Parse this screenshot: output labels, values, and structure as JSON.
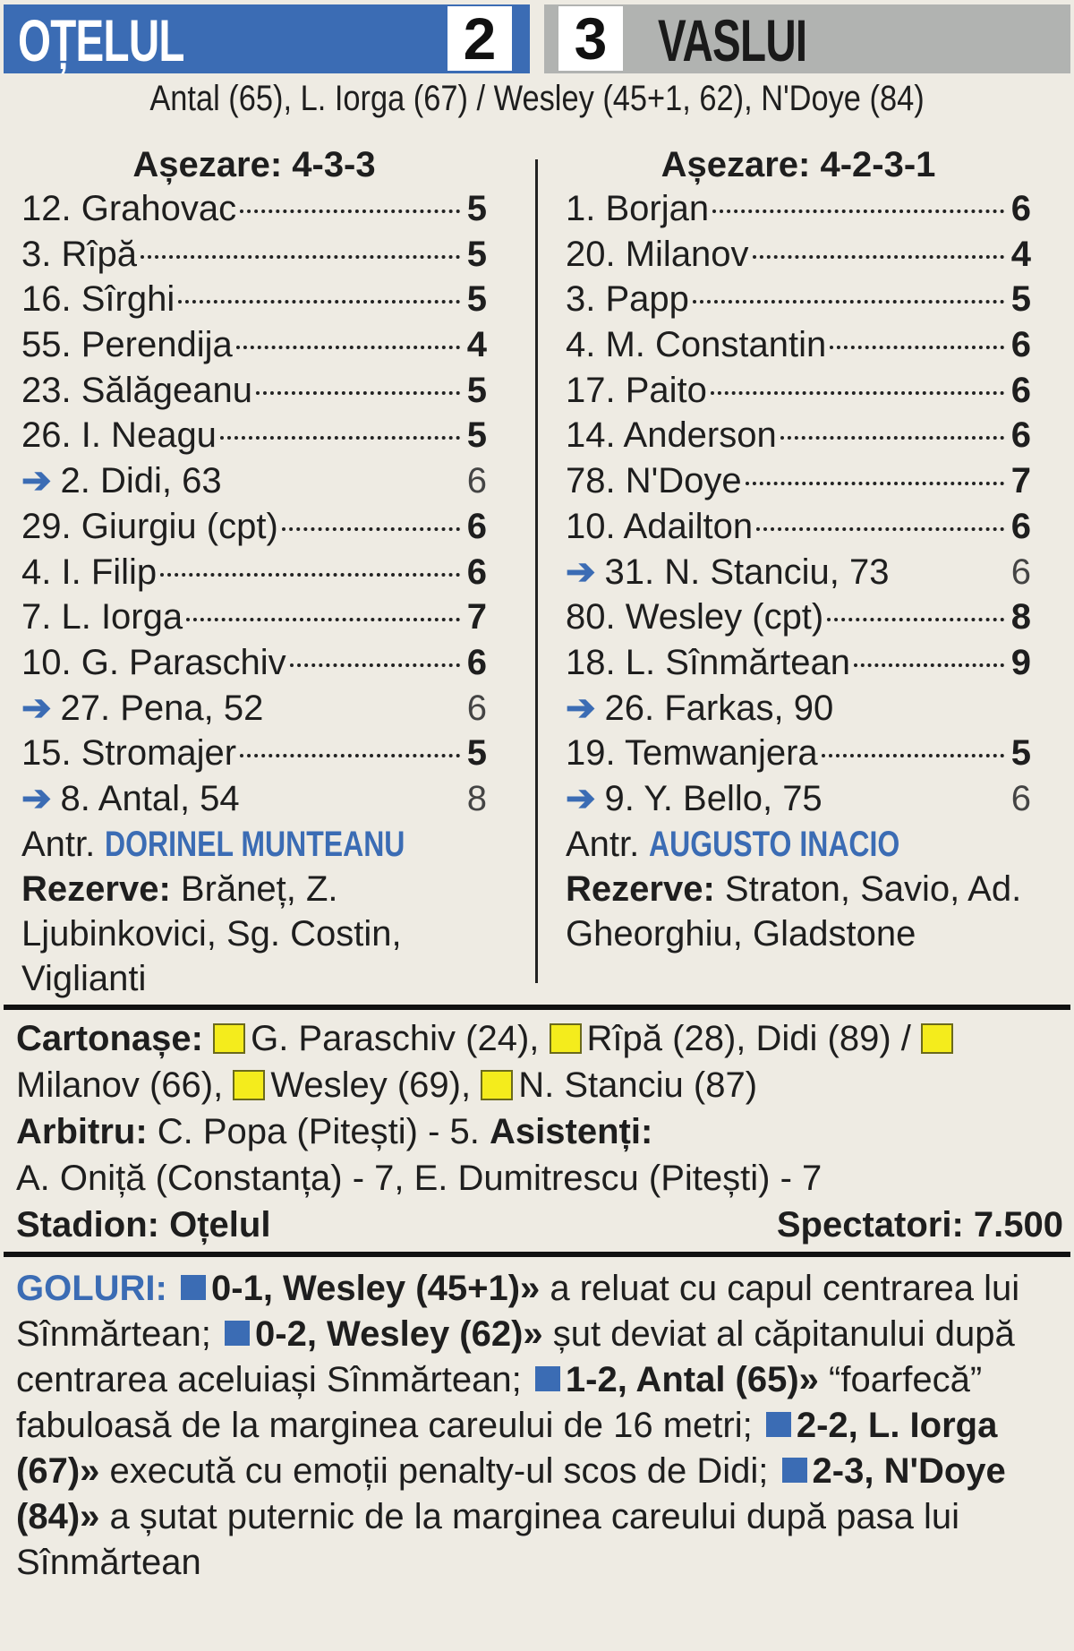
{
  "header": {
    "home": "OȚELUL",
    "away": "VASLUI",
    "home_score": "2",
    "away_score": "3",
    "scorers": "Antal (65), L. Iorga (67) / Wesley (45+1, 62), N'Doye (84)"
  },
  "colors": {
    "home": "#3b6cb4",
    "away": "#b1b3b1",
    "card": "#f4ec1c"
  },
  "home": {
    "formation": "Așezare: 4-3-3",
    "players": [
      {
        "name": "12. Grahovac",
        "rating": "5"
      },
      {
        "name": "3. Rîpă",
        "rating": "5"
      },
      {
        "name": "16. Sîrghi",
        "rating": "5"
      },
      {
        "name": "55. Perendija",
        "rating": "4"
      },
      {
        "name": "23. Sălăgeanu",
        "rating": "5"
      },
      {
        "name": "26. I. Neagu",
        "rating": "5"
      },
      {
        "name": "2. Didi, 63",
        "rating": "6",
        "sub": true
      },
      {
        "name": "29. Giurgiu (cpt)",
        "rating": "6"
      },
      {
        "name": "4. I. Filip",
        "rating": "6"
      },
      {
        "name": "7. L. Iorga",
        "rating": "7"
      },
      {
        "name": "10. G. Paraschiv",
        "rating": "6"
      },
      {
        "name": "27. Pena, 52",
        "rating": "6",
        "sub": true
      },
      {
        "name": "15. Stromajer",
        "rating": "5"
      },
      {
        "name": "8. Antal, 54",
        "rating": "8",
        "sub": true
      }
    ],
    "coach_label": "Antr.",
    "coach": "DORINEL MUNTEANU",
    "reserves_label": "Rezerve:",
    "reserves": "Brăneț, Z. Ljubinkovici, Sg. Costin, Viglianti"
  },
  "away": {
    "formation": "Așezare: 4-2-3-1",
    "players": [
      {
        "name": "1. Borjan",
        "rating": "6"
      },
      {
        "name": "20. Milanov",
        "rating": "4"
      },
      {
        "name": "3. Papp",
        "rating": "5"
      },
      {
        "name": "4. M. Constantin",
        "rating": "6"
      },
      {
        "name": "17. Paito",
        "rating": "6"
      },
      {
        "name": "14. Anderson",
        "rating": "6"
      },
      {
        "name": "78. N'Doye",
        "rating": "7"
      },
      {
        "name": "10. Adailton",
        "rating": "6"
      },
      {
        "name": "31. N. Stanciu, 73",
        "rating": "6",
        "sub": true
      },
      {
        "name": "80. Wesley (cpt)",
        "rating": "8"
      },
      {
        "name": "18. L. Sînmărtean",
        "rating": "9"
      },
      {
        "name": "26. Farkas, 90",
        "rating": "",
        "sub": true
      },
      {
        "name": "19. Temwanjera",
        "rating": "5"
      },
      {
        "name": "9. Y. Bello, 75",
        "rating": "6",
        "sub": true
      }
    ],
    "coach_label": "Antr.",
    "coach": "AUGUSTO INACIO",
    "reserves_label": "Rezerve:",
    "reserves": "Straton, Savio, Ad. Gheorghiu, Gladstone"
  },
  "info": {
    "cards_label": "Cartonașe:",
    "cards": [
      "G. Paraschiv (24),",
      "Rîpă (28), Didi (89) /",
      "Milanov (66),",
      "Wesley (69),",
      "N. Stanciu (87)"
    ],
    "referee_label": "Arbitru:",
    "referee": "C. Popa (Pitești) - 5.",
    "assistants_label": "Asistenți:",
    "assistants": "A. Oniță (Constanța) - 7, E. Dumitrescu (Pitești) - 7",
    "stadium": "Stadion: Oțelul",
    "spectators": "Spectatori: 7.500"
  },
  "goals": {
    "label": "GOLURI:",
    "items": [
      {
        "head": "0-1, Wesley (45+1)»",
        "text": " a reluat cu capul centrarea lui Sînmărtean;"
      },
      {
        "head": "0-2, Wesley (62)»",
        "text": " șut deviat al căpitanului după centrarea aceluiași Sînmărtean;"
      },
      {
        "head": "1-2, Antal (65)»",
        "text": " “foarfecă” fabuloasă de la marginea careului de 16 metri;"
      },
      {
        "head": "2-2, L. Iorga (67)»",
        "text": " execută cu emoții penalty-ul scos de Didi;"
      },
      {
        "head": "2-3, N'Doye (84)»",
        "text": " a șutat puternic de la marginea careului după pasa lui Sînmărtean"
      }
    ]
  }
}
